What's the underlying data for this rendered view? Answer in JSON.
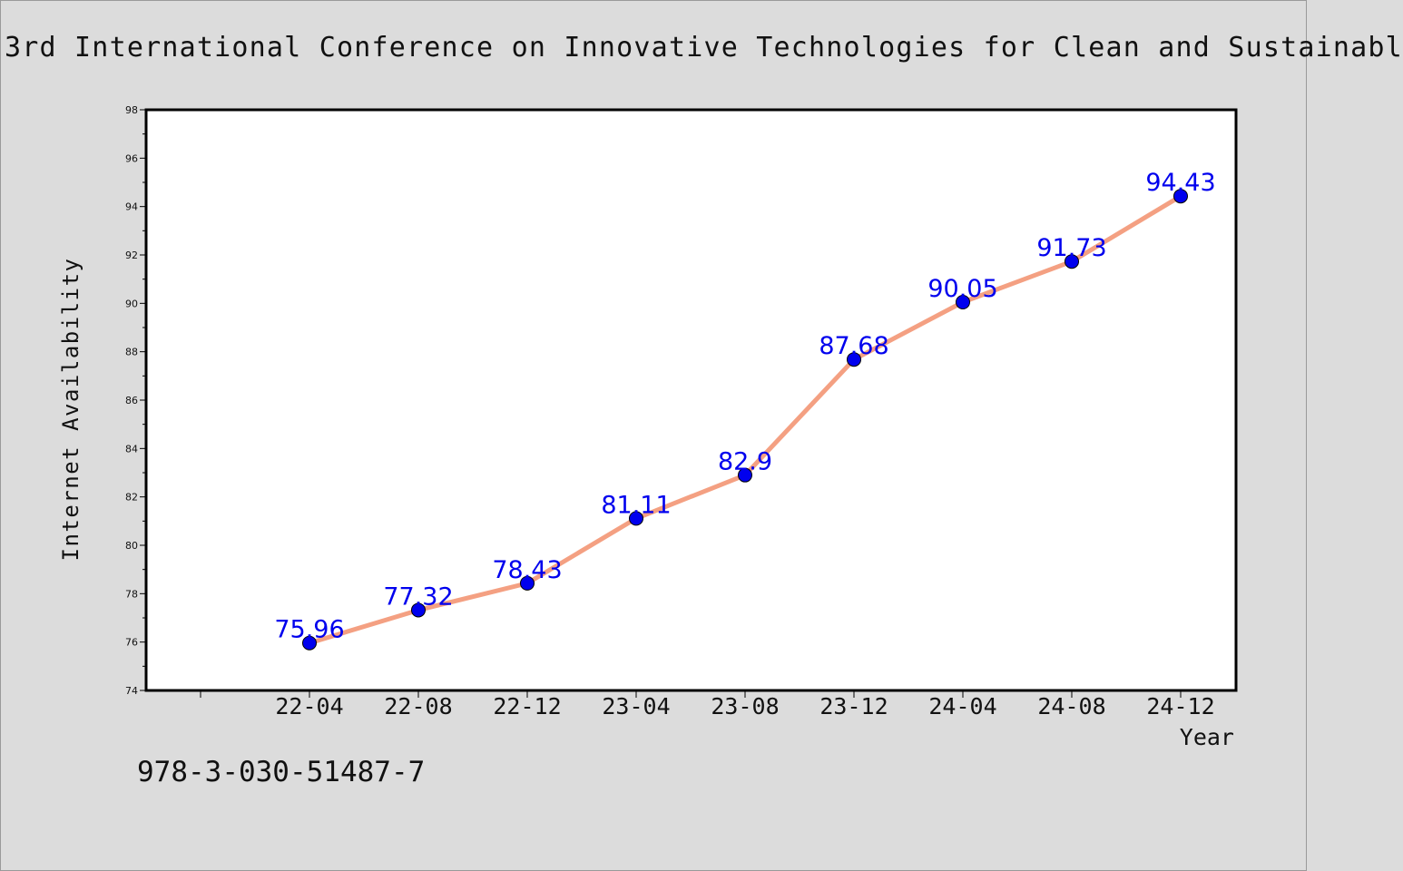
{
  "chart_data": {
    "type": "line",
    "title": "3rd International Conference on Innovative Technologies for Clean and Sustainabl",
    "xlabel": "Year",
    "ylabel": "Internet Availability",
    "categories": [
      "22-04",
      "22-08",
      "22-12",
      "23-04",
      "23-08",
      "23-12",
      "24-04",
      "24-08",
      "24-12"
    ],
    "series": [
      {
        "values": [
          75.96,
          77.32,
          78.43,
          81.11,
          82.9,
          87.68,
          90.05,
          91.73,
          94.43
        ],
        "data_labels": [
          "75.96",
          "77.32",
          "78.43",
          "81.11",
          "82.9",
          "87.68",
          "90.05",
          "91.73",
          "94.43"
        ]
      }
    ],
    "ylim": [
      74,
      98
    ],
    "yticks": [
      "74",
      "76",
      "78",
      "80",
      "82",
      "84",
      "86",
      "88",
      "90",
      "92",
      "94",
      "96",
      "98"
    ],
    "grid": false,
    "legend": "none",
    "colors": {
      "line": "#f4a082",
      "marker": "#0000ee",
      "data_label": "#0000ee",
      "plot_background": "#ffffff",
      "page_background": "#dcdcdc"
    }
  },
  "footer": {
    "isbn": "978-3-030-51487-7"
  }
}
